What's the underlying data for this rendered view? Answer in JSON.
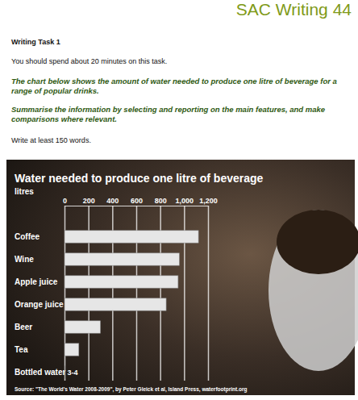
{
  "document": {
    "header": "SAC Writing 44",
    "task_title": "Writing Task 1",
    "instruction": "You should spend about 20 minutes on this task.",
    "prompt": [
      "The chart below shows the amount of water needed to produce one litre of beverage for a range of popular drinks.",
      "Summarise the information by selecting and reporting on the main features, and make comparisons where relevant."
    ],
    "word_count": "Write at least 150 words."
  },
  "chart_data": {
    "type": "bar",
    "orientation": "horizontal",
    "title": "Water needed to produce one litre of beverage",
    "xlabel": "litres",
    "categories": [
      "Coffee",
      "Wine",
      "Apple juice",
      "Orange juice",
      "Beer",
      "Tea",
      "Bottled water"
    ],
    "values": [
      1120,
      960,
      950,
      850,
      300,
      120,
      3.5
    ],
    "value_labels": [
      null,
      null,
      null,
      null,
      null,
      null,
      "3-4"
    ],
    "color": "#e6e6e6",
    "xlim": [
      0,
      1200
    ],
    "xticks": [
      0,
      200,
      400,
      600,
      800,
      {
        "value": 1000,
        "label": "1,000"
      },
      {
        "value": 1200,
        "label": "1,200"
      }
    ],
    "grid": true,
    "annotations": [
      "Source: \"The World's Water 2008-2009\", by Peter Gleick et al, Island Press, waterfootprint.org"
    ]
  }
}
